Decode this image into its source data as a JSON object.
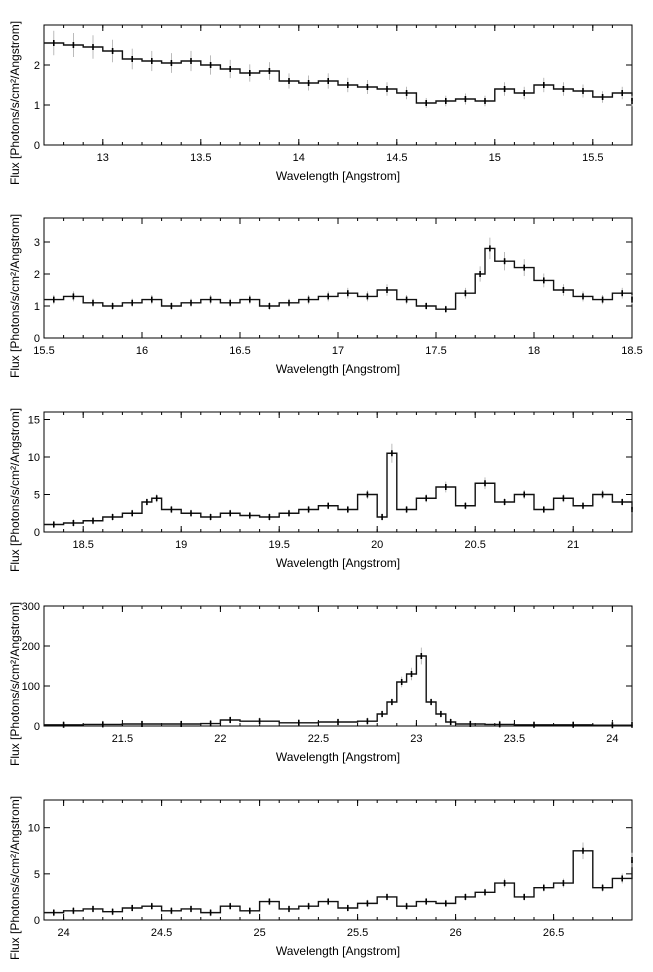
{
  "chart_data": [
    {
      "type": "line",
      "xlabel": "Wavelength [Angstrom]",
      "ylabel": "Flux [Photons/s/cm²/Angstrom]",
      "xlim": [
        12.7,
        15.7
      ],
      "ylim": [
        0,
        3
      ],
      "xticks": [
        "13",
        "13.5",
        "14",
        "14.5",
        "15",
        "15.5"
      ],
      "xtick_values": [
        13,
        13.5,
        14,
        14.5,
        15,
        15.5
      ],
      "yticks": [
        "0",
        "1",
        "2"
      ],
      "ytick_values": [
        0,
        1,
        2
      ],
      "series": [
        {
          "x": [
            12.7,
            12.8,
            12.9,
            13.0,
            13.1,
            13.2,
            13.3,
            13.4,
            13.5,
            13.6,
            13.7,
            13.8,
            13.9,
            14.0,
            14.1,
            14.2,
            14.3,
            14.4,
            14.5,
            14.6,
            14.7,
            14.8,
            14.9,
            15.0,
            15.1,
            15.2,
            15.3,
            15.4,
            15.5,
            15.6,
            15.7
          ],
          "y": [
            2.55,
            2.5,
            2.45,
            2.35,
            2.15,
            2.1,
            2.05,
            2.1,
            2.0,
            1.9,
            1.8,
            1.85,
            1.6,
            1.55,
            1.6,
            1.5,
            1.45,
            1.4,
            1.3,
            1.05,
            1.1,
            1.15,
            1.1,
            1.4,
            1.3,
            1.5,
            1.4,
            1.35,
            1.2,
            1.3,
            1.1
          ]
        }
      ]
    },
    {
      "type": "line",
      "xlabel": "Wavelength [Angstrom]",
      "ylabel": "Flux [Photons/s/cm²/Angstrom]",
      "xlim": [
        15.5,
        18.5
      ],
      "ylim": [
        0,
        3.75
      ],
      "xticks": [
        "15.5",
        "16",
        "16.5",
        "17",
        "17.5",
        "18",
        "18.5"
      ],
      "xtick_values": [
        15.5,
        16,
        16.5,
        17,
        17.5,
        18,
        18.5
      ],
      "yticks": [
        "0",
        "1",
        "2",
        "3"
      ],
      "ytick_values": [
        0,
        1,
        2,
        3
      ],
      "series": [
        {
          "x": [
            15.5,
            15.6,
            15.7,
            15.8,
            15.9,
            16.0,
            16.1,
            16.2,
            16.3,
            16.4,
            16.5,
            16.6,
            16.7,
            16.8,
            16.9,
            17.0,
            17.1,
            17.2,
            17.3,
            17.4,
            17.5,
            17.6,
            17.7,
            17.75,
            17.8,
            17.9,
            18.0,
            18.1,
            18.2,
            18.3,
            18.4,
            18.5
          ],
          "y": [
            1.2,
            1.3,
            1.1,
            1.0,
            1.1,
            1.2,
            1.0,
            1.1,
            1.2,
            1.1,
            1.2,
            1.0,
            1.1,
            1.2,
            1.3,
            1.4,
            1.3,
            1.5,
            1.2,
            1.0,
            0.9,
            1.4,
            2.0,
            2.8,
            2.4,
            2.2,
            1.8,
            1.5,
            1.3,
            1.2,
            1.4,
            1.2
          ]
        }
      ]
    },
    {
      "type": "line",
      "xlabel": "Wavelength [Angstrom]",
      "ylabel": "Flux [Photons/s/cm²/Angstrom]",
      "xlim": [
        18.3,
        21.3
      ],
      "ylim": [
        0,
        16
      ],
      "xticks": [
        "18.5",
        "19",
        "19.5",
        "20",
        "20.5",
        "21"
      ],
      "xtick_values": [
        18.5,
        19,
        19.5,
        20,
        20.5,
        21
      ],
      "yticks": [
        "0",
        "5",
        "10",
        "15"
      ],
      "ytick_values": [
        0,
        5,
        10,
        15
      ],
      "series": [
        {
          "x": [
            18.3,
            18.4,
            18.5,
            18.6,
            18.7,
            18.8,
            18.85,
            18.9,
            19.0,
            19.1,
            19.2,
            19.3,
            19.4,
            19.5,
            19.6,
            19.7,
            19.8,
            19.9,
            20.0,
            20.05,
            20.1,
            20.2,
            20.3,
            20.4,
            20.5,
            20.6,
            20.7,
            20.8,
            20.9,
            21.0,
            21.1,
            21.2,
            21.3
          ],
          "y": [
            1.0,
            1.2,
            1.5,
            2.0,
            2.5,
            4.0,
            4.5,
            3.0,
            2.5,
            2.0,
            2.5,
            2.2,
            2.0,
            2.5,
            3.0,
            3.5,
            3.0,
            5.0,
            2.0,
            10.5,
            3.0,
            4.5,
            6.0,
            3.5,
            6.5,
            4.0,
            5.0,
            3.0,
            4.5,
            3.5,
            5.0,
            4.0,
            3.0
          ]
        }
      ]
    },
    {
      "type": "line",
      "xlabel": "Wavelength [Angstrom]",
      "ylabel": "Flux [Photons/s/cm²/Angstrom]",
      "xlim": [
        21.1,
        24.1
      ],
      "ylim": [
        0,
        300
      ],
      "xticks": [
        "21.5",
        "22",
        "22.5",
        "23",
        "23.5",
        "24"
      ],
      "xtick_values": [
        21.5,
        22,
        22.5,
        23,
        23.5,
        24
      ],
      "yticks": [
        "0",
        "100",
        "200",
        "300"
      ],
      "ytick_values": [
        0,
        100,
        200,
        300
      ],
      "series": [
        {
          "x": [
            21.1,
            21.3,
            21.5,
            21.7,
            21.9,
            22.0,
            22.1,
            22.3,
            22.5,
            22.7,
            22.8,
            22.85,
            22.9,
            22.95,
            23.0,
            23.05,
            23.1,
            23.15,
            23.2,
            23.35,
            23.5,
            23.7,
            23.9,
            24.1
          ],
          "y": [
            3,
            4,
            5,
            5,
            6,
            15,
            12,
            8,
            10,
            12,
            30,
            60,
            110,
            130,
            175,
            60,
            30,
            10,
            5,
            4,
            3,
            3,
            2,
            3
          ]
        }
      ]
    },
    {
      "type": "line",
      "xlabel": "Wavelength [Angstrom]",
      "ylabel": "Flux [Photons/s/cm²/Angstrom]",
      "xlim": [
        23.9,
        26.9
      ],
      "ylim": [
        0,
        13
      ],
      "xticks": [
        "24",
        "24.5",
        "25",
        "25.5",
        "26",
        "26.5"
      ],
      "xtick_values": [
        24,
        24.5,
        25,
        25.5,
        26,
        26.5
      ],
      "yticks": [
        "0",
        "5",
        "10"
      ],
      "ytick_values": [
        0,
        5,
        10
      ],
      "series": [
        {
          "x": [
            23.9,
            24.0,
            24.1,
            24.2,
            24.3,
            24.4,
            24.5,
            24.6,
            24.7,
            24.8,
            24.9,
            25.0,
            25.1,
            25.2,
            25.3,
            25.4,
            25.5,
            25.6,
            25.7,
            25.8,
            25.9,
            26.0,
            26.1,
            26.2,
            26.3,
            26.4,
            26.5,
            26.6,
            26.7,
            26.8,
            26.9
          ],
          "y": [
            0.8,
            1.0,
            1.2,
            0.9,
            1.3,
            1.5,
            1.0,
            1.2,
            0.8,
            1.5,
            1.0,
            2.0,
            1.2,
            1.5,
            2.0,
            1.3,
            1.8,
            2.5,
            1.5,
            2.0,
            1.8,
            2.5,
            3.0,
            4.0,
            2.5,
            3.5,
            4.0,
            7.5,
            3.5,
            4.5,
            6.5
          ]
        }
      ]
    }
  ]
}
